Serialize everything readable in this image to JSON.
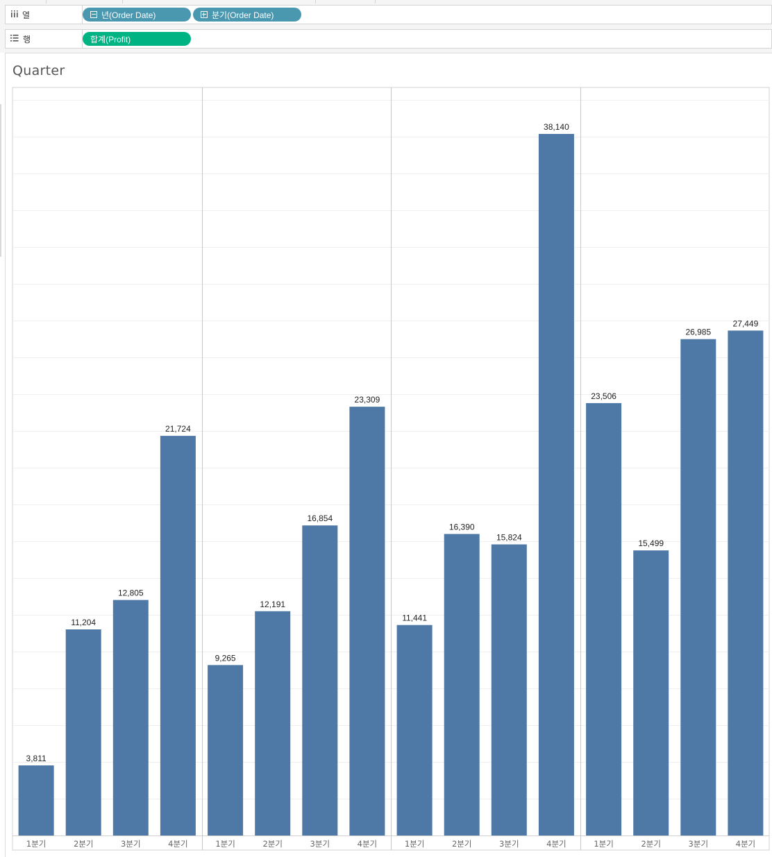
{
  "shelves": {
    "columns": {
      "label": "열",
      "icon": "columns-icon",
      "pills": [
        {
          "text": "년(Order Date)",
          "icon": "collapse-icon",
          "color": "#4a97b0"
        },
        {
          "text": "분기(Order Date)",
          "icon": "expand-icon",
          "color": "#4a97b0"
        }
      ]
    },
    "rows": {
      "label": "행",
      "icon": "rows-icon",
      "pills": [
        {
          "text": "합계(Profit)",
          "color": "#00b383"
        }
      ]
    }
  },
  "worksheet": {
    "title": "Quarter"
  },
  "chart_data": {
    "type": "bar",
    "title": "Quarter",
    "xlabel": "",
    "ylabel": "",
    "bar_color": "#4e79a7",
    "ylim": [
      0,
      40000
    ],
    "grid": true,
    "panes": [
      {
        "categories": [
          "1분기",
          "2분기",
          "3분기",
          "4분기"
        ],
        "values": [
          3811,
          11204,
          12805,
          21724
        ],
        "labels": [
          "3,811",
          "11,204",
          "12,805",
          "21,724"
        ]
      },
      {
        "categories": [
          "1분기",
          "2분기",
          "3분기",
          "4분기"
        ],
        "values": [
          9265,
          12191,
          16854,
          23309
        ],
        "labels": [
          "9,265",
          "12,191",
          "16,854",
          "23,309"
        ]
      },
      {
        "categories": [
          "1분기",
          "2분기",
          "3분기",
          "4분기"
        ],
        "values": [
          11441,
          16390,
          15824,
          38140
        ],
        "labels": [
          "11,441",
          "16,390",
          "15,824",
          "38,140"
        ]
      },
      {
        "categories": [
          "1분기",
          "2분기",
          "3분기",
          "4분기"
        ],
        "values": [
          23506,
          15499,
          26985,
          27449
        ],
        "labels": [
          "23,506",
          "15,499",
          "26,985",
          "27,449"
        ]
      }
    ]
  }
}
